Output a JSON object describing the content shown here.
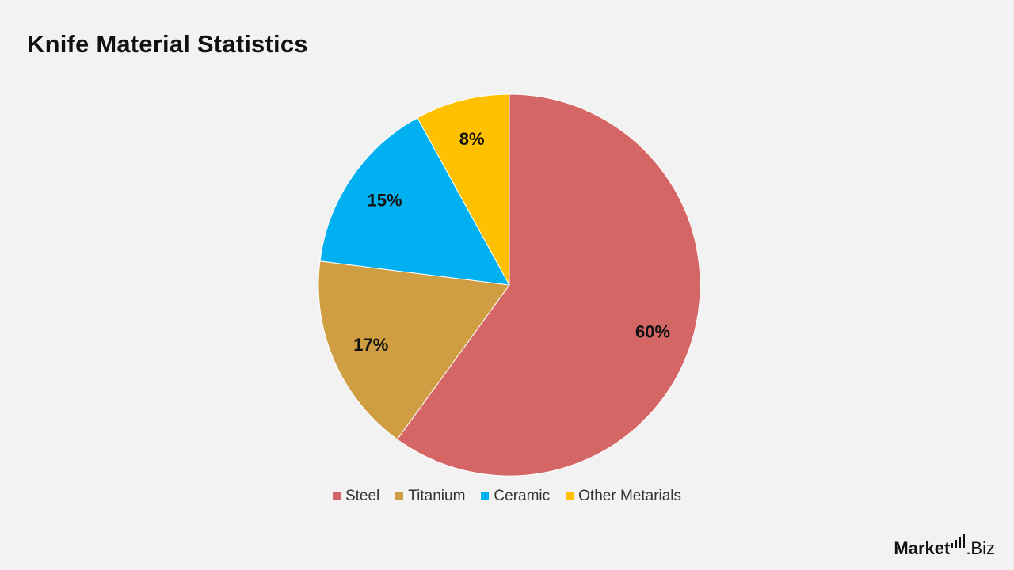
{
  "title": "Knife Material Statistics",
  "chart_data": {
    "type": "pie",
    "title": "Knife Material Statistics",
    "categories": [
      "Steel",
      "Titanium",
      "Ceramic",
      "Other Metarials"
    ],
    "values": [
      60,
      17,
      15,
      8
    ],
    "labels": [
      "60%",
      "17%",
      "15%",
      "8%"
    ],
    "colors": [
      "#d46765",
      "#cf9d42",
      "#00b0f0",
      "#ffc000"
    ],
    "legend_position": "bottom"
  },
  "legend": {
    "items": [
      {
        "label": "Steel",
        "color": "#d46765"
      },
      {
        "label": "Titanium",
        "color": "#cf9d42"
      },
      {
        "label": "Ceramic",
        "color": "#00b0f0"
      },
      {
        "label": "Other Metarials",
        "color": "#ffc000"
      }
    ]
  },
  "brand": {
    "part1": "Market",
    "part2": ".Biz"
  }
}
